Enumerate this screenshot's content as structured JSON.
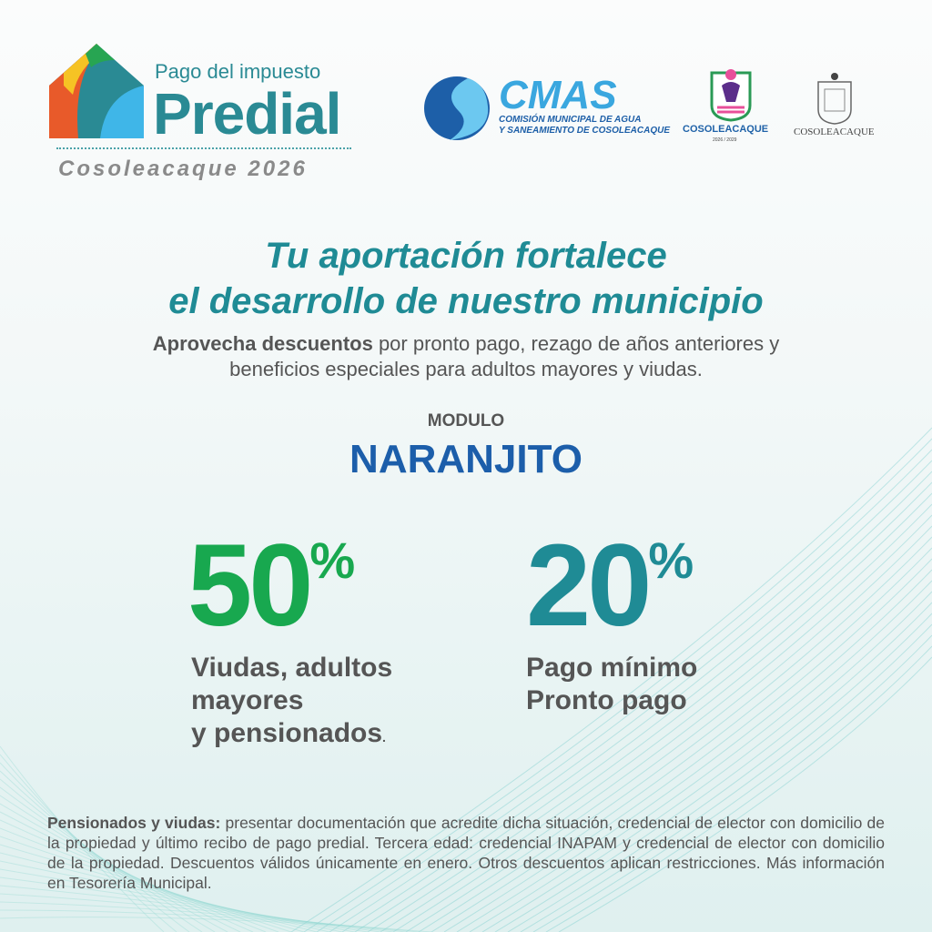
{
  "brand": {
    "subtitle": "Pago del impuesto",
    "title": "Predial",
    "city_year": "Cosoleacaque 2026"
  },
  "logos": {
    "cmas_title": "CMAS",
    "cmas_line1": "COMISIÓN MUNICIPAL DE AGUA",
    "cmas_line2": "Y SANEAMIENTO DE COSOLEACAQUE",
    "ayuntamiento_name": "COSOLEACAQUE",
    "ayuntamiento_years": "2026 / 2029",
    "escudo_name": "COSOLEACAQUE"
  },
  "headline": {
    "line1": "Tu aportación fortalece",
    "line2": "el desarrollo de nuestro municipio"
  },
  "subtitle": {
    "bold": "Aprovecha descuentos",
    "rest1": " por pronto pago, rezago de años anteriores y",
    "line2": "beneficios especiales para adultos mayores y viudas."
  },
  "module": {
    "label": "MODULO",
    "name": "NARANJITO"
  },
  "discounts": [
    {
      "value": "50",
      "unit": "%",
      "lines": [
        "Viudas, adultos",
        "mayores",
        "y pensionados"
      ],
      "color": "#18a84f"
    },
    {
      "value": "20",
      "unit": "%",
      "lines": [
        "Pago mínimo",
        "Pronto pago"
      ],
      "color": "#1f8b95"
    }
  ],
  "fine_print": {
    "bold": "Pensionados y viudas:",
    "text": " presentar documentación que acredite dicha situación, credencial de elector con domicilio de la propiedad y último recibo de pago predial. Tercera edad: credencial INAPAM y credencial de elector con domicilio de la propiedad. Descuentos válidos únicamente en enero. Otros descuentos aplican restricciones. Más información en Tesorería Municipal."
  },
  "colors": {
    "teal": "#1f8b95",
    "green": "#18a84f",
    "blue": "#1c5eaa",
    "gray": "#555555"
  }
}
